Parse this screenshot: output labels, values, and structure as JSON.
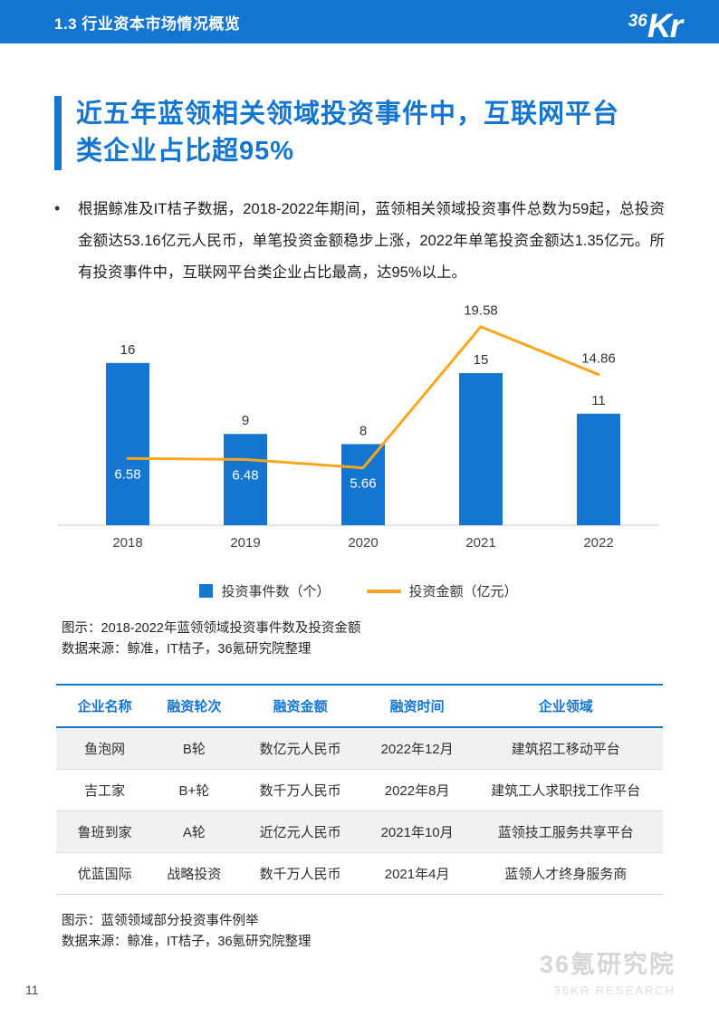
{
  "header": {
    "section": "1.3 行业资本市场情况概览",
    "logo_36": "36",
    "logo_kr": "Kr"
  },
  "title": "近五年蓝领相关领域投资事件中，互联网平台类企业占比超95%",
  "bullet": "•",
  "body_paragraph": "根据鲸准及IT桔子数据，2018-2022年期间，蓝领相关领域投资事件总数为59起，总投资金额达53.16亿元人民币，单笔投资金额稳步上涨，2022年单笔投资金额达1.35亿元。所有投资事件中，互联网平台类企业占比最高，达95%以上。",
  "chart_data": {
    "type": "bar",
    "categories": [
      "2018",
      "2019",
      "2020",
      "2021",
      "2022"
    ],
    "series": [
      {
        "name": "投资事件数（个）",
        "type": "bar",
        "values": [
          16,
          9,
          8,
          15,
          11
        ],
        "color": "#1576d2"
      },
      {
        "name": "投资金额（亿元）",
        "type": "line",
        "values": [
          6.58,
          6.48,
          5.66,
          19.58,
          14.86
        ],
        "color": "#FFA41D"
      }
    ],
    "title": "",
    "xlabel": "",
    "ylabel": "",
    "ylim": [
      0,
      22
    ],
    "grid": false,
    "legend_position": "bottom"
  },
  "chart_caption": [
    "图示：2018-2022年蓝领领域投资事件数及投资金额",
    "数据来源：鲸准，IT桔子，36氪研究院整理"
  ],
  "table": {
    "headers": [
      "企业名称",
      "融资轮次",
      "融资金额",
      "融资时间",
      "企业领域"
    ],
    "rows": [
      [
        "鱼泡网",
        "B轮",
        "数亿元人民币",
        "2022年12月",
        "建筑招工移动平台"
      ],
      [
        "吉工家",
        "B+轮",
        "数千万人民币",
        "2022年8月",
        "建筑工人求职找工作平台"
      ],
      [
        "鲁班到家",
        "A轮",
        "近亿元人民币",
        "2021年10月",
        "蓝领技工服务共享平台"
      ],
      [
        "优蓝国际",
        "战略投资",
        "数千万人民币",
        "2021年4月",
        "蓝领人才终身服务商"
      ]
    ]
  },
  "table_caption": [
    "图示：蓝领领域部分投资事件例举",
    "数据来源：鲸准，IT桔子，36氪研究院整理"
  ],
  "footer": {
    "page_number": "11",
    "watermark_line1": "36氪研究院",
    "watermark_line2": "36KR RESEARCH"
  },
  "colors": {
    "primary_blue": "#1576d2",
    "accent_orange": "#FFA41D"
  }
}
